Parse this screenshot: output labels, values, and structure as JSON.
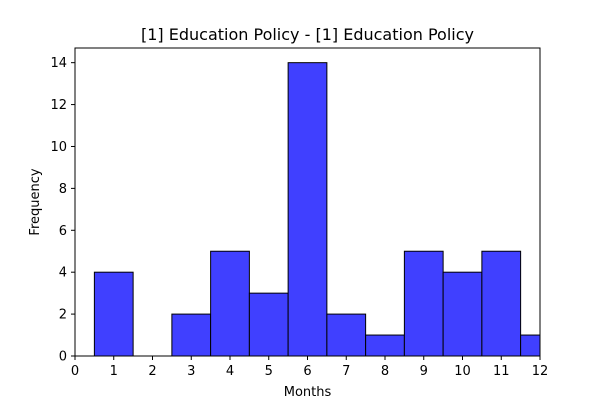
{
  "chart_data": {
    "type": "bar",
    "title": "[1] Education Policy - [1] Education Policy",
    "xlabel": "Months",
    "ylabel": "Frequency",
    "xlim": [
      0,
      12
    ],
    "ylim": [
      0,
      14.7
    ],
    "x_ticks": [
      "0",
      "1",
      "2",
      "3",
      "4",
      "5",
      "6",
      "7",
      "8",
      "9",
      "10",
      "11",
      "12"
    ],
    "y_ticks": [
      "0",
      "2",
      "4",
      "6",
      "8",
      "10",
      "12",
      "14"
    ],
    "bin_width": 1,
    "bins": [
      {
        "x": 1,
        "value": 4
      },
      {
        "x": 2,
        "value": 0
      },
      {
        "x": 3,
        "value": 2
      },
      {
        "x": 4,
        "value": 5
      },
      {
        "x": 5,
        "value": 3
      },
      {
        "x": 6,
        "value": 14
      },
      {
        "x": 7,
        "value": 2
      },
      {
        "x": 8,
        "value": 1
      },
      {
        "x": 9,
        "value": 5
      },
      {
        "x": 10,
        "value": 4
      },
      {
        "x": 11,
        "value": 5
      },
      {
        "x": 12,
        "value": 1
      }
    ],
    "bar_color": "#4040ff",
    "edge_color": "#000000",
    "grid": false
  }
}
